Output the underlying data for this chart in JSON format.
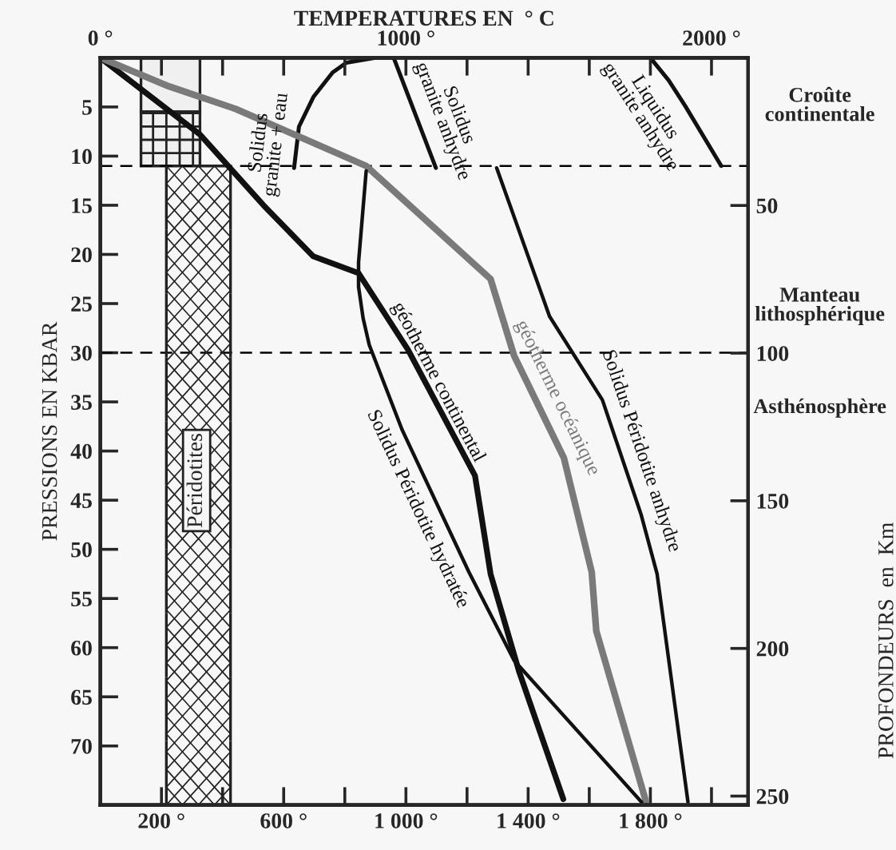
{
  "chart_data": {
    "type": "line",
    "x2label": "TEMPERATURES EN  ° C",
    "ylabel": "PRESSIONS EN KBAR",
    "y2label": "PROFONDEURS  en  Km",
    "xlim": [
      0,
      2120
    ],
    "xticks": [
      {
        "value": 200,
        "label": "200 °"
      },
      {
        "value": 400,
        "label": null
      },
      {
        "value": 600,
        "label": "600 °"
      },
      {
        "value": 800,
        "label": null
      },
      {
        "value": 1000,
        "label": "1 000 °"
      },
      {
        "value": 1200,
        "label": null
      },
      {
        "value": 1400,
        "label": "1 400 °"
      },
      {
        "value": 1600,
        "label": null
      },
      {
        "value": 1800,
        "label": "1 800 °"
      },
      {
        "value": 2000,
        "label": null
      }
    ],
    "x2lim": [
      0,
      2120
    ],
    "x2ticks": [
      {
        "value": 0,
        "label": "0 °"
      },
      {
        "value": 200,
        "label": null
      },
      {
        "value": 400,
        "label": null
      },
      {
        "value": 600,
        "label": null
      },
      {
        "value": 800,
        "label": null
      },
      {
        "value": 1000,
        "label": "1000 °"
      },
      {
        "value": 1200,
        "label": null
      },
      {
        "value": 1400,
        "label": null
      },
      {
        "value": 1600,
        "label": null
      },
      {
        "value": 1800,
        "label": null
      },
      {
        "value": 2000,
        "label": "2000 °"
      }
    ],
    "ylim": [
      76,
      0
    ],
    "yticks": [
      5,
      10,
      15,
      20,
      25,
      30,
      35,
      40,
      45,
      50,
      55,
      60,
      65,
      70
    ],
    "y2lim": [
      253,
      0
    ],
    "y2ticks": [
      50,
      100,
      150,
      200,
      250
    ],
    "grid": false,
    "ref_lines": [
      {
        "axis": "y",
        "value": 11,
        "line_style": "dashed",
        "color": "#000000"
      },
      {
        "axis": "y",
        "value": 30,
        "line_style": "dashed",
        "color": "#000000"
      }
    ],
    "annotations": [
      "Croûte continentale",
      "Manteau lithosphérique",
      "Asthénosphère",
      "Péridotites"
    ],
    "series": [
      {
        "name": "Solidus granite + eau",
        "color": "#111111",
        "x": [
          634,
          650,
          697,
          760,
          805,
          900,
          950
        ],
        "values": [
          11.2,
          7,
          4,
          1.5,
          0.5,
          0,
          0
        ]
      },
      {
        "name": "Solidus granite anhydre",
        "color": "#111111",
        "x": [
          960,
          1098
        ],
        "values": [
          0,
          11.2
        ]
      },
      {
        "name": "Liquidus granite anhydre",
        "color": "#111111",
        "x": [
          1800,
          1860,
          1914,
          2032
        ],
        "values": [
          0,
          2.3,
          4.9,
          11
        ]
      },
      {
        "name": "géotherme continental",
        "color": "#111111",
        "x": [
          0,
          326,
          534,
          697,
          845,
          1007,
          1226,
          1277,
          1370,
          1515
        ],
        "values": [
          0,
          7.8,
          15,
          20.2,
          21.9,
          29.7,
          42.5,
          52.5,
          62.4,
          75.4
        ]
      },
      {
        "name": "géotherme océanique",
        "color": "#7a7a7a",
        "x": [
          0,
          224,
          443,
          870,
          1277,
          1354,
          1517,
          1608,
          1623,
          1786
        ],
        "values": [
          0,
          2.9,
          5.2,
          11,
          22.5,
          30.3,
          40.7,
          52.3,
          58.3,
          75.7
        ]
      },
      {
        "name": "Solidus Péridotite hydratée",
        "color": "#111111",
        "x": [
          870,
          845,
          845,
          860,
          880,
          987,
          1206,
          1354,
          1771
        ],
        "values": [
          11.5,
          20.8,
          23.3,
          26.5,
          29.2,
          37.8,
          52.3,
          61.3,
          75.7
        ]
      },
      {
        "name": "Solidus Péridotite anhydre",
        "color": "#111111",
        "x": [
          1297,
          1470,
          1643,
          1770,
          1822,
          1923
        ],
        "values": [
          11.2,
          26.3,
          34.8,
          46.5,
          52.5,
          75.7
        ]
      }
    ]
  }
}
